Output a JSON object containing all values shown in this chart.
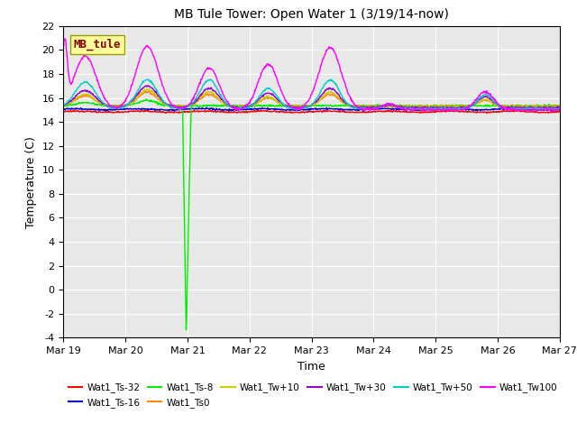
{
  "title": "MB Tule Tower: Open Water 1 (3/19/14-now)",
  "xlabel": "Time",
  "ylabel": "Temperature (C)",
  "ylim": [
    -4,
    22
  ],
  "xlim": [
    0,
    8
  ],
  "x_tick_positions": [
    0,
    1,
    2,
    3,
    4,
    5,
    6,
    7,
    8
  ],
  "x_tick_labels": [
    "Mar 19",
    "Mar 20",
    "Mar 21",
    "Mar 22",
    "Mar 23",
    "Mar 24",
    "Mar 25",
    "Mar 26",
    "Mar 27"
  ],
  "ytick_positions": [
    -4,
    -2,
    0,
    2,
    4,
    6,
    8,
    10,
    12,
    14,
    16,
    18,
    20,
    22
  ],
  "plot_bg": "#e8e8e8",
  "grid_color": "#ffffff",
  "annotation_text": "MB_tule",
  "annotation_color": "#8B0000",
  "annotation_bg": "#ffff99",
  "annotation_border": "#999900",
  "series_colors": {
    "Wat1_Ts-32": "#ff0000",
    "Wat1_Ts-16": "#0000cc",
    "Wat1_Ts-8": "#00ee00",
    "Wat1_Ts0": "#ff8800",
    "Wat1_Tw+10": "#cccc00",
    "Wat1_Tw+30": "#9900cc",
    "Wat1_Tw+50": "#00cccc",
    "Wat1_Tw100": "#ff00ff"
  },
  "legend_order": [
    "Wat1_Ts-32",
    "Wat1_Ts-16",
    "Wat1_Ts-8",
    "Wat1_Ts0",
    "Wat1_Tw+10",
    "Wat1_Tw+30",
    "Wat1_Tw+50",
    "Wat1_Tw100"
  ]
}
